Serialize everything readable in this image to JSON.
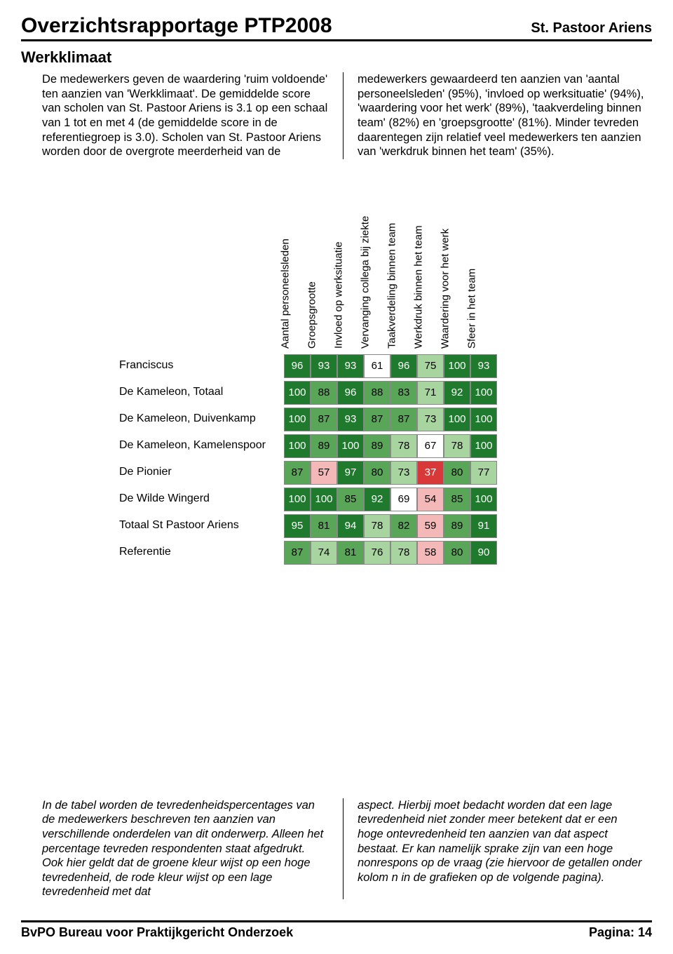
{
  "header": {
    "report_title": "Overzichtsrapportage PTP2008",
    "school_name": "St. Pastoor Ariens"
  },
  "section_title": "Werkklimaat",
  "intro": {
    "left": "De medewerkers geven de waardering 'ruim voldoende' ten aanzien van 'Werkklimaat'. De gemiddelde score van scholen van St. Pastoor Ariens is 3.1 op een schaal van 1 tot en met 4 (de gemiddelde score in de referentiegroep is 3.0).\nScholen van St. Pastoor Ariens worden door de overgrote meerderheid van de",
    "right": "medewerkers gewaardeerd ten aanzien van 'aantal personeelsleden' (95%), 'invloed op werksituatie' (94%), 'waardering voor het werk' (89%), 'taakverdeling binnen team' (82%) en 'groepsgrootte' (81%).\nMinder tevreden daarentegen zijn relatief veel medewerkers ten aanzien van 'werkdruk binnen het team' (35%)."
  },
  "heatmap": {
    "columns": [
      "Aantal personeelsleden",
      "Groepsgrootte",
      "Invloed op werksituatie",
      "Vervanging collega bij ziekte",
      "Taakverdeling binnen team",
      "Werkdruk binnen het team",
      "Waardering voor het werk",
      "Sfeer in het team"
    ],
    "row_labels": [
      "Franciscus",
      "De Kameleon, Totaal",
      "De Kameleon, Duivenkamp",
      "De Kameleon, Kamelenspoor",
      "De Pionier",
      "De Wilde Wingerd",
      "Totaal St Pastoor Ariens",
      "Referentie"
    ],
    "values": [
      [
        96,
        93,
        93,
        61,
        96,
        75,
        100,
        93
      ],
      [
        100,
        88,
        96,
        88,
        83,
        71,
        92,
        100
      ],
      [
        100,
        87,
        93,
        87,
        87,
        73,
        100,
        100
      ],
      [
        100,
        89,
        100,
        89,
        78,
        67,
        78,
        100
      ],
      [
        87,
        57,
        97,
        80,
        73,
        37,
        80,
        77
      ],
      [
        100,
        100,
        85,
        92,
        69,
        54,
        85,
        100
      ],
      [
        95,
        81,
        94,
        78,
        82,
        59,
        89,
        91
      ],
      [
        87,
        74,
        81,
        76,
        78,
        58,
        80,
        90
      ]
    ],
    "color_scale": {
      "high": "#1f7a2e",
      "mid_high": "#5aa659",
      "mid": "#a8d4a0",
      "neutral": "#ffffff",
      "mid_low": "#f4b8b8",
      "low": "#d93838",
      "border": "#888888"
    }
  },
  "footer_text": {
    "left": "In de tabel worden de tevredenheidspercentages van de medewerkers beschreven ten aanzien van verschillende onderdelen van dit onderwerp. Alleen het percentage tevreden respondenten staat afgedrukt. Ook hier geldt dat de groene kleur wijst op een hoge tevredenheid, de rode kleur wijst op een lage tevredenheid met dat",
    "right": "aspect.\nHierbij moet bedacht worden dat een lage tevredenheid niet zonder meer betekent dat er een hoge ontevredenheid ten aanzien van dat aspect bestaat. Er kan namelijk sprake zijn van een hoge nonrespons op de vraag (zie hiervoor de getallen onder kolom n in de grafieken op de volgende pagina)."
  },
  "footer": {
    "org": "BvPO Bureau voor Praktijkgericht Onderzoek",
    "page": "Pagina: 14"
  }
}
